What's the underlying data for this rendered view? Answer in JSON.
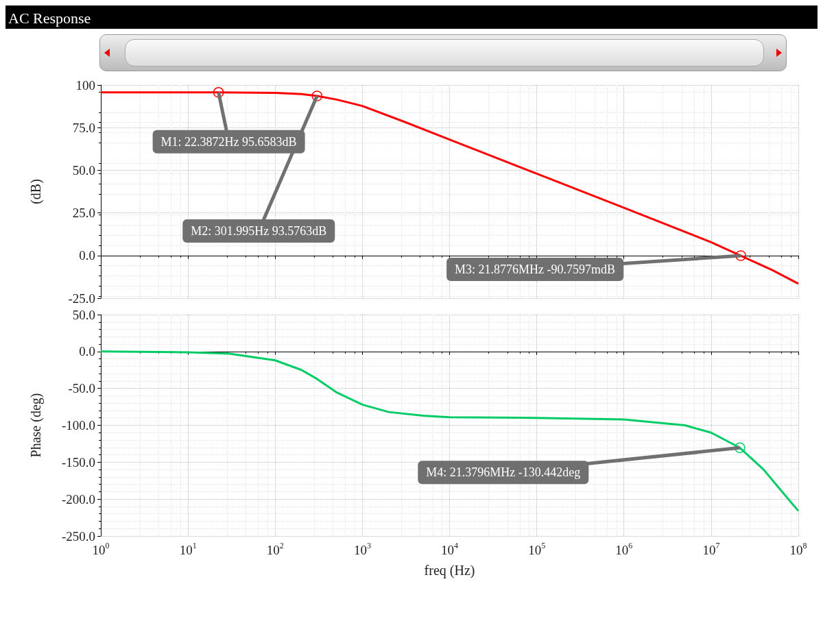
{
  "chart_data": [
    {
      "type": "line",
      "title": "AC Response",
      "ylabel": "(dB)",
      "tick_labels": "y",
      "grid": true,
      "marker": "none",
      "line_style": "solid",
      "log": "x",
      "xlim": [
        1,
        100000000
      ],
      "xticks": [
        {
          "value": 1,
          "label": null
        },
        {
          "value": 10,
          "label": null
        },
        {
          "value": 100,
          "label": null
        },
        {
          "value": 1000,
          "label": null
        },
        {
          "value": 10000,
          "label": null
        },
        {
          "value": 100000,
          "label": null
        },
        {
          "value": 1000000,
          "label": null
        },
        {
          "value": 10000000,
          "label": null
        },
        {
          "value": 100000000,
          "label": null
        }
      ],
      "ylim": [
        -25,
        100
      ],
      "yticks": [
        {
          "value": -25,
          "label": "-25.0"
        },
        {
          "value": 0,
          "label": "0.0"
        },
        {
          "value": 25,
          "label": "25.0"
        },
        {
          "value": 50,
          "label": "50.0"
        },
        {
          "value": 75,
          "label": "75.0"
        },
        100
      ],
      "series": [
        {
          "color": "#ff0000",
          "x": [
            1,
            10,
            22.3872,
            100,
            200,
            301.995,
            500,
            1000,
            3000,
            10000,
            100000,
            1000000,
            10000000,
            21877600,
            50000000,
            100000000
          ],
          "values": [
            95.7,
            95.7,
            95.6583,
            95.4,
            94.7,
            93.5763,
            91.5,
            87.7,
            78.5,
            68,
            48,
            28,
            7.8,
            -0.0907597,
            -8.5,
            -16.5
          ]
        }
      ],
      "annotations": [
        {
          "text": "M1: 22.3872Hz 95.6583dB",
          "x": 22.3872,
          "y": 95.6583
        },
        {
          "text": "M2: 301.995Hz 93.5763dB",
          "x": 301.995,
          "y": 93.5763
        },
        {
          "text": "M3: 21.8776MHz -90.7597mdB",
          "x": 21877600,
          "y": -0.0907597
        }
      ]
    },
    {
      "type": "line",
      "xlabel": "freq (Hz)",
      "ylabel": "Phase (deg)",
      "grid": true,
      "marker": "none",
      "line_style": "solid",
      "log": "x",
      "xlim": [
        1,
        100000000
      ],
      "xticks": [
        {
          "value": 1,
          "label": "10$^{0}$"
        },
        {
          "value": 10,
          "label": "10$^{1}$"
        },
        {
          "value": 100,
          "label": "10$^{2}$"
        },
        {
          "value": 1000,
          "label": "10$^{3}$"
        },
        {
          "value": 10000,
          "label": "10$^{4}$"
        },
        {
          "value": 100000,
          "label": "10$^{5}$"
        },
        {
          "value": 1000000,
          "label": "10$^{6}$"
        },
        {
          "value": 10000000,
          "label": "10$^{7}$"
        },
        {
          "value": 100000000,
          "label": "10$^{8}$"
        }
      ],
      "ylim": [
        -250,
        50
      ],
      "yticks": [
        {
          "value": -250,
          "label": "-250.0"
        },
        {
          "value": -200,
          "label": "-200.0"
        },
        {
          "value": -150,
          "label": "-150.0"
        },
        {
          "value": -100,
          "label": "-100.0"
        },
        {
          "value": -50,
          "label": "-50.0"
        },
        {
          "value": 0,
          "label": "0.0"
        },
        {
          "value": 50,
          "label": "50.0"
        }
      ],
      "series": [
        {
          "color": "#00cc66",
          "x": [
            1,
            10,
            30,
            100,
            200,
            300,
            500,
            1000,
            2000,
            5000,
            10000,
            100000,
            1000000,
            5000000,
            10000000,
            21379600,
            40000000,
            60000000,
            100000000
          ],
          "values": [
            0,
            -1,
            -3,
            -12,
            -25,
            -37,
            -55,
            -72,
            -82,
            -87,
            -89,
            -90,
            -92,
            -100,
            -110,
            -130.442,
            -160,
            -185,
            -216
          ]
        }
      ],
      "annotations": [
        {
          "text": "M4: 21.3796MHz -130.442deg",
          "x": 21379600,
          "y": -130.442
        }
      ]
    }
  ]
}
